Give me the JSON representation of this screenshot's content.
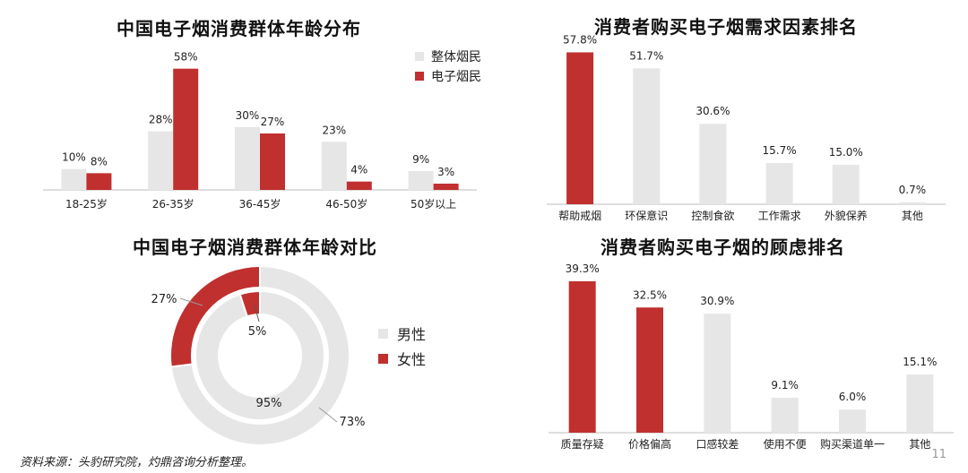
{
  "colors": {
    "red": "#c0302f",
    "gray": "#e6e6e6",
    "axis": "#bdbdbd"
  },
  "source_note": "资料来源：头豹研究院，灼鼎咨询分析整理。",
  "page_number": "11",
  "chart_data": [
    {
      "id": "age_distribution",
      "type": "bar",
      "title": "中国电子烟消费群体年龄分布",
      "categories": [
        "18-25岁",
        "26-35岁",
        "36-45岁",
        "46-50岁",
        "50岁以上"
      ],
      "series": [
        {
          "name": "整体烟民",
          "values": [
            10,
            28,
            30,
            23,
            9
          ],
          "labels": [
            "10%",
            "28%",
            "30%",
            "23%",
            "9%"
          ]
        },
        {
          "name": "电子烟民",
          "values": [
            8,
            58,
            27,
            4,
            3
          ],
          "labels": [
            "8%",
            "58%",
            "27%",
            "4%",
            "3%"
          ]
        }
      ],
      "legend_position": "top-right",
      "ylim": [
        0,
        60
      ]
    },
    {
      "id": "purchase_demand",
      "type": "bar",
      "title": "消费者购买电子烟需求因素排名",
      "categories": [
        "帮助戒烟",
        "环保意识",
        "控制食欲",
        "工作需求",
        "外貌保养",
        "其他"
      ],
      "values": [
        57.8,
        51.7,
        30.6,
        15.7,
        15.0,
        0.7
      ],
      "labels": [
        "57.8%",
        "51.7%",
        "30.6%",
        "15.7%",
        "15.0%",
        "0.7%"
      ],
      "highlight": [
        0
      ],
      "ylim": [
        0,
        60
      ]
    },
    {
      "id": "gender_comparison",
      "type": "pie",
      "title": "中国电子烟消费群体年龄对比",
      "rings": [
        {
          "ring": "outer",
          "slices": [
            {
              "name": "男性",
              "value": 73,
              "label": "73%"
            },
            {
              "name": "女性",
              "value": 27,
              "label": "27%"
            }
          ]
        },
        {
          "ring": "inner",
          "slices": [
            {
              "name": "男性",
              "value": 95,
              "label": "95%"
            },
            {
              "name": "女性",
              "value": 5,
              "label": "5%"
            }
          ]
        }
      ],
      "legend": [
        "男性",
        "女性"
      ],
      "legend_position": "right"
    },
    {
      "id": "purchase_concerns",
      "type": "bar",
      "title": "消费者购买电子烟的顾虑排名",
      "categories": [
        "质量存疑",
        "价格偏高",
        "口感较差",
        "使用不便",
        "购买渠道单一",
        "其他"
      ],
      "values": [
        39.3,
        32.5,
        30.9,
        9.1,
        6.0,
        15.1
      ],
      "labels": [
        "39.3%",
        "32.5%",
        "30.9%",
        "9.1%",
        "6.0%",
        "15.1%"
      ],
      "highlight": [
        0,
        1
      ],
      "ylim": [
        0,
        40
      ]
    }
  ]
}
